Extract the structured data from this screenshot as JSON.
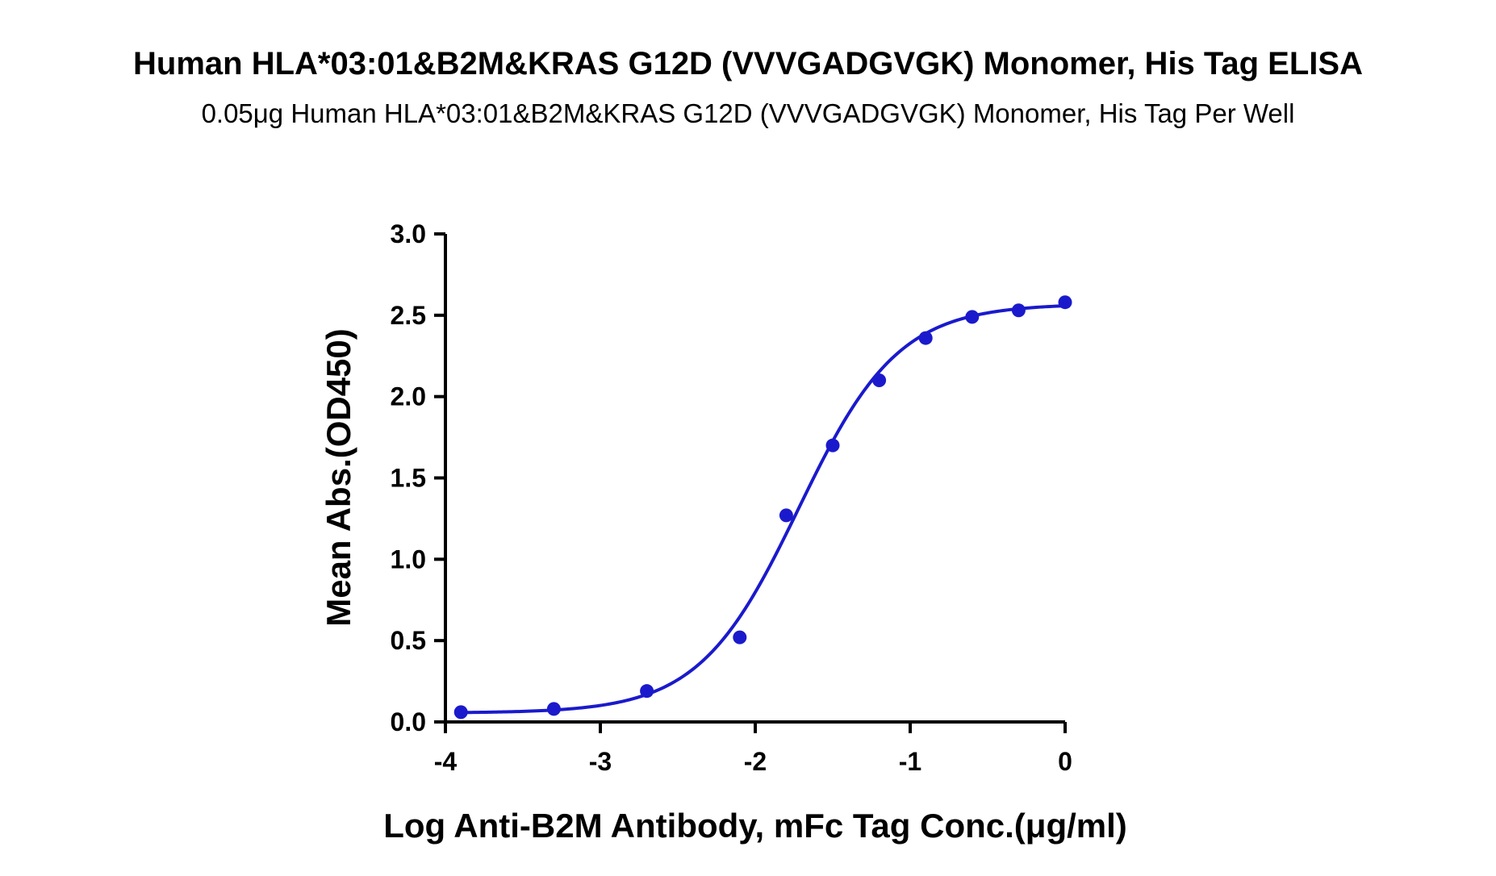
{
  "chart_data": {
    "type": "scatter",
    "title": "Human HLA*03:01&B2M&KRAS G12D (VVVGADGVGK) Monomer, His Tag ELISA",
    "subtitle": "0.05μg  Human HLA*03:01&B2M&KRAS G12D (VVVGADGVGK) Monomer, His Tag Per Well",
    "xlabel": "Log Anti-B2M Antibody, mFc Tag Conc.(μg/ml)",
    "ylabel": "Mean Abs.(OD450)",
    "xlim": [
      -4,
      0
    ],
    "ylim": [
      0,
      3
    ],
    "x_ticks": [
      -4,
      -3,
      -2,
      -1,
      0
    ],
    "x_tick_labels": [
      "-4",
      "-3",
      "-2",
      "-1",
      "0"
    ],
    "y_ticks": [
      0,
      0.5,
      1,
      1.5,
      2,
      2.5,
      3
    ],
    "y_tick_labels": [
      "0.0",
      "0.5",
      "1.0",
      "1.5",
      "2.0",
      "2.5",
      "3.0"
    ],
    "grid": false,
    "legend": "none",
    "series": [
      {
        "color": "#1a1acc",
        "points": [
          {
            "x": -3.9,
            "y": 0.06
          },
          {
            "x": -3.3,
            "y": 0.08
          },
          {
            "x": -2.7,
            "y": 0.19
          },
          {
            "x": -2.1,
            "y": 0.52
          },
          {
            "x": -1.8,
            "y": 1.27
          },
          {
            "x": -1.5,
            "y": 1.7
          },
          {
            "x": -1.2,
            "y": 2.1
          },
          {
            "x": -0.9,
            "y": 2.36
          },
          {
            "x": -0.6,
            "y": 2.49
          },
          {
            "x": -0.3,
            "y": 2.53
          },
          {
            "x": 0.0,
            "y": 2.58
          }
        ],
        "fit": {
          "model": "4PL",
          "bottom": 0.055,
          "top": 2.57,
          "log_ec50": -1.72,
          "hill_slope": 1.35
        }
      }
    ]
  }
}
